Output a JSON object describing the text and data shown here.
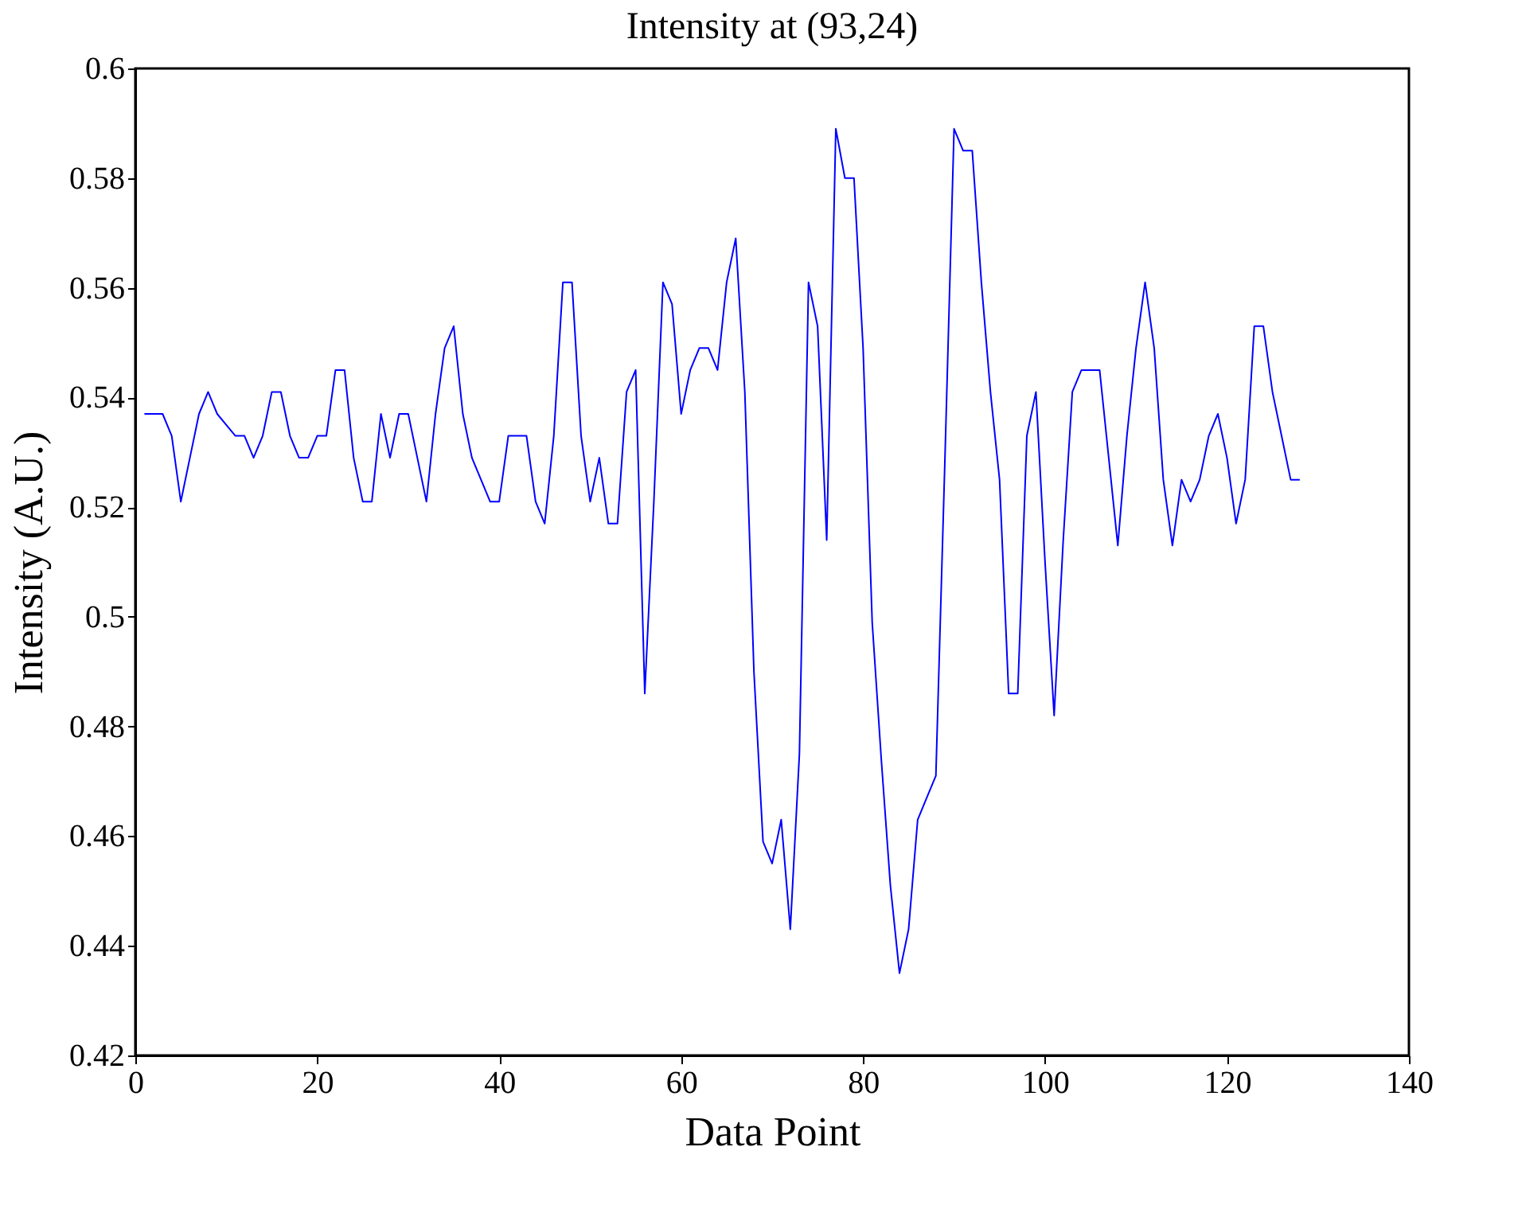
{
  "chart_data": {
    "type": "line",
    "title": "Intensity at (93,24)",
    "xlabel": "Data Point",
    "ylabel": "Intensity (A.U.)",
    "x": [
      1,
      2,
      3,
      4,
      5,
      6,
      7,
      8,
      9,
      10,
      11,
      12,
      13,
      14,
      15,
      16,
      17,
      18,
      19,
      20,
      21,
      22,
      23,
      24,
      25,
      26,
      27,
      28,
      29,
      30,
      31,
      32,
      33,
      34,
      35,
      36,
      37,
      38,
      39,
      40,
      41,
      42,
      43,
      44,
      45,
      46,
      47,
      48,
      49,
      50,
      51,
      52,
      53,
      54,
      55,
      56,
      57,
      58,
      59,
      60,
      61,
      62,
      63,
      64,
      65,
      66,
      67,
      68,
      69,
      70,
      71,
      72,
      73,
      74,
      75,
      76,
      77,
      78,
      79,
      80,
      81,
      82,
      83,
      84,
      85,
      86,
      87,
      88,
      89,
      90,
      91,
      92,
      93,
      94,
      95,
      96,
      97,
      98,
      99,
      100,
      101,
      102,
      103,
      104,
      105,
      106,
      107,
      108,
      109,
      110,
      111,
      112,
      113,
      114,
      115,
      116,
      117,
      118,
      119,
      120,
      121,
      122,
      123,
      124,
      125,
      126,
      127,
      128
    ],
    "series": [
      {
        "color": "#0000ff",
        "values": [
          0.537,
          0.537,
          0.537,
          0.533,
          0.521,
          0.529,
          0.537,
          0.541,
          0.537,
          0.535,
          0.533,
          0.533,
          0.529,
          0.533,
          0.541,
          0.541,
          0.533,
          0.529,
          0.529,
          0.533,
          0.533,
          0.545,
          0.545,
          0.529,
          0.521,
          0.521,
          0.537,
          0.529,
          0.537,
          0.537,
          0.529,
          0.521,
          0.537,
          0.549,
          0.553,
          0.537,
          0.529,
          0.525,
          0.521,
          0.521,
          0.533,
          0.533,
          0.533,
          0.521,
          0.517,
          0.533,
          0.561,
          0.561,
          0.533,
          0.521,
          0.529,
          0.517,
          0.517,
          0.541,
          0.545,
          0.486,
          0.521,
          0.561,
          0.557,
          0.537,
          0.545,
          0.549,
          0.549,
          0.545,
          0.561,
          0.569,
          0.541,
          0.49,
          0.459,
          0.455,
          0.463,
          0.443,
          0.475,
          0.561,
          0.553,
          0.514,
          0.589,
          0.58,
          0.58,
          0.549,
          0.499,
          0.474,
          0.451,
          0.435,
          0.443,
          0.463,
          0.467,
          0.471,
          0.529,
          0.589,
          0.585,
          0.585,
          0.561,
          0.541,
          0.525,
          0.486,
          0.486,
          0.533,
          0.541,
          0.51,
          0.482,
          0.514,
          0.541,
          0.545,
          0.545,
          0.545,
          0.529,
          0.513,
          0.533,
          0.549,
          0.561,
          0.549,
          0.525,
          0.513,
          0.525,
          0.521,
          0.525,
          0.533,
          0.537,
          0.529,
          0.517,
          0.525,
          0.553,
          0.553,
          0.541,
          0.533,
          0.525,
          0.525
        ]
      }
    ],
    "xlim": [
      0,
      140
    ],
    "xticks": [
      0,
      20,
      40,
      60,
      80,
      100,
      120,
      140
    ],
    "ylim": [
      0.42,
      0.6
    ],
    "yticks": [
      0.42,
      0.44,
      0.46,
      0.48,
      0.5,
      0.52,
      0.54,
      0.56,
      0.58,
      0.6
    ],
    "grid": false,
    "legend": false
  }
}
